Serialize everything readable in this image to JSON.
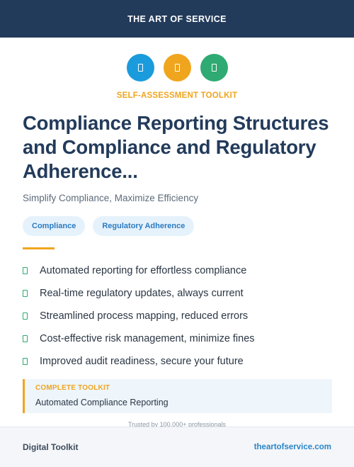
{
  "colors": {
    "header_bg": "#233b5b",
    "accent_orange": "#f0a51e",
    "icon_blue": "#1a9bdc",
    "icon_orange": "#f0a51e",
    "icon_green": "#2eaa72",
    "link_blue": "#2a85c8"
  },
  "header": {
    "brand": "THE ART OF SERVICE"
  },
  "icons": [
    {
      "name": "document-icon-blue",
      "color": "#1a9bdc"
    },
    {
      "name": "document-icon-orange",
      "color": "#f0a51e"
    },
    {
      "name": "document-icon-green",
      "color": "#2eaa72"
    }
  ],
  "kicker": "SELF-ASSESSMENT TOOLKIT",
  "title": "Compliance Reporting Structures and Compliance and Regulatory Adherence...",
  "subtitle": "Simplify Compliance, Maximize Efficiency",
  "tags": [
    "Compliance",
    "Regulatory Adherence"
  ],
  "features": [
    "Automated reporting for effortless compliance",
    "Real-time regulatory updates, always current",
    "Streamlined process mapping, reduced errors",
    "Cost-effective risk management, minimize fines",
    "Improved audit readiness, secure your future"
  ],
  "callout": {
    "label": "COMPLETE TOOLKIT",
    "text": "Automated Compliance Reporting"
  },
  "trusted": "Trusted by 100,000+ professionals",
  "footer": {
    "left": "Digital Toolkit",
    "right": "theartofservice.com"
  }
}
